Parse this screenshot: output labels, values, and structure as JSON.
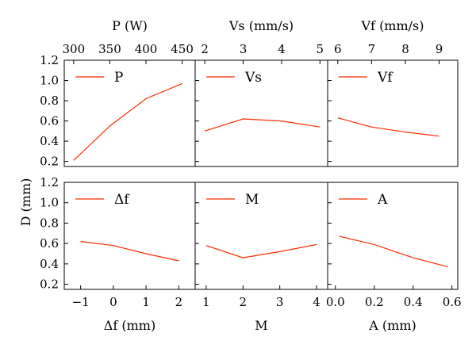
{
  "figure": {
    "ylabel": "D (mm)"
  },
  "colors": {
    "series": "#ff2a00",
    "axes": "#000000",
    "background": "#ffffff"
  },
  "chart_data": [
    {
      "type": "line",
      "legend": "P",
      "top_axis_label": "P (W)",
      "top_ticks": [
        "300",
        "350",
        "400",
        "450"
      ],
      "x": [
        300,
        350,
        400,
        450
      ],
      "y": [
        0.21,
        0.55,
        0.82,
        0.97
      ],
      "xlim": [
        287,
        468
      ],
      "ylim": [
        0.15,
        1.2
      ],
      "yticks": [
        "0.2",
        "0.4",
        "0.6",
        "0.8",
        "1.0",
        "1.2"
      ],
      "legend_position": "top-left",
      "grid": false
    },
    {
      "type": "line",
      "legend": "Vs",
      "top_axis_label": "Vs (mm/s)",
      "top_ticks": [
        "2",
        "3",
        "4",
        "5"
      ],
      "x": [
        2,
        3,
        4,
        5
      ],
      "y": [
        0.5,
        0.62,
        0.6,
        0.54
      ],
      "xlim": [
        1.75,
        5.2
      ],
      "ylim": [
        0.15,
        1.2
      ],
      "legend_position": "top-left",
      "grid": false
    },
    {
      "type": "line",
      "legend": "Vf",
      "top_axis_label": "Vf (mm/s)",
      "top_ticks": [
        "6",
        "7",
        "8",
        "9"
      ],
      "x": [
        6,
        7,
        8,
        9
      ],
      "y": [
        0.63,
        0.54,
        0.49,
        0.45
      ],
      "xlim": [
        5.7,
        9.55
      ],
      "ylim": [
        0.15,
        1.2
      ],
      "legend_position": "top-left",
      "grid": false
    },
    {
      "type": "line",
      "legend": "Δf",
      "bottom_axis_label": "Δf (mm)",
      "bottom_ticks": [
        "−1",
        "0",
        "1",
        "2"
      ],
      "x": [
        -1,
        0,
        1,
        2
      ],
      "y": [
        0.62,
        0.58,
        0.5,
        0.43
      ],
      "xlim": [
        -1.5,
        2.5
      ],
      "ylim": [
        0.15,
        1.2
      ],
      "yticks": [
        "0.2",
        "0.4",
        "0.6",
        "0.8",
        "1.0",
        "1.2"
      ],
      "legend_position": "top-left",
      "grid": false
    },
    {
      "type": "line",
      "legend": "M",
      "bottom_axis_label": "M",
      "bottom_ticks": [
        "1",
        "2",
        "3",
        "4"
      ],
      "x": [
        1,
        2,
        3,
        4
      ],
      "y": [
        0.58,
        0.46,
        0.52,
        0.59
      ],
      "xlim": [
        0.7,
        4.3
      ],
      "ylim": [
        0.15,
        1.2
      ],
      "legend_position": "top-left",
      "grid": false
    },
    {
      "type": "line",
      "legend": "A",
      "bottom_axis_label": "A (mm)",
      "bottom_ticks": [
        "0.0",
        "0.2",
        "0.4",
        "0.6"
      ],
      "bottom_tick_values": [
        0,
        0.2,
        0.4,
        0.6
      ],
      "x": [
        0.02,
        0.2,
        0.4,
        0.58
      ],
      "y": [
        0.67,
        0.59,
        0.46,
        0.37
      ],
      "xlim": [
        -0.04,
        0.63
      ],
      "ylim": [
        0.15,
        1.2
      ],
      "legend_position": "top-left",
      "grid": false
    }
  ]
}
